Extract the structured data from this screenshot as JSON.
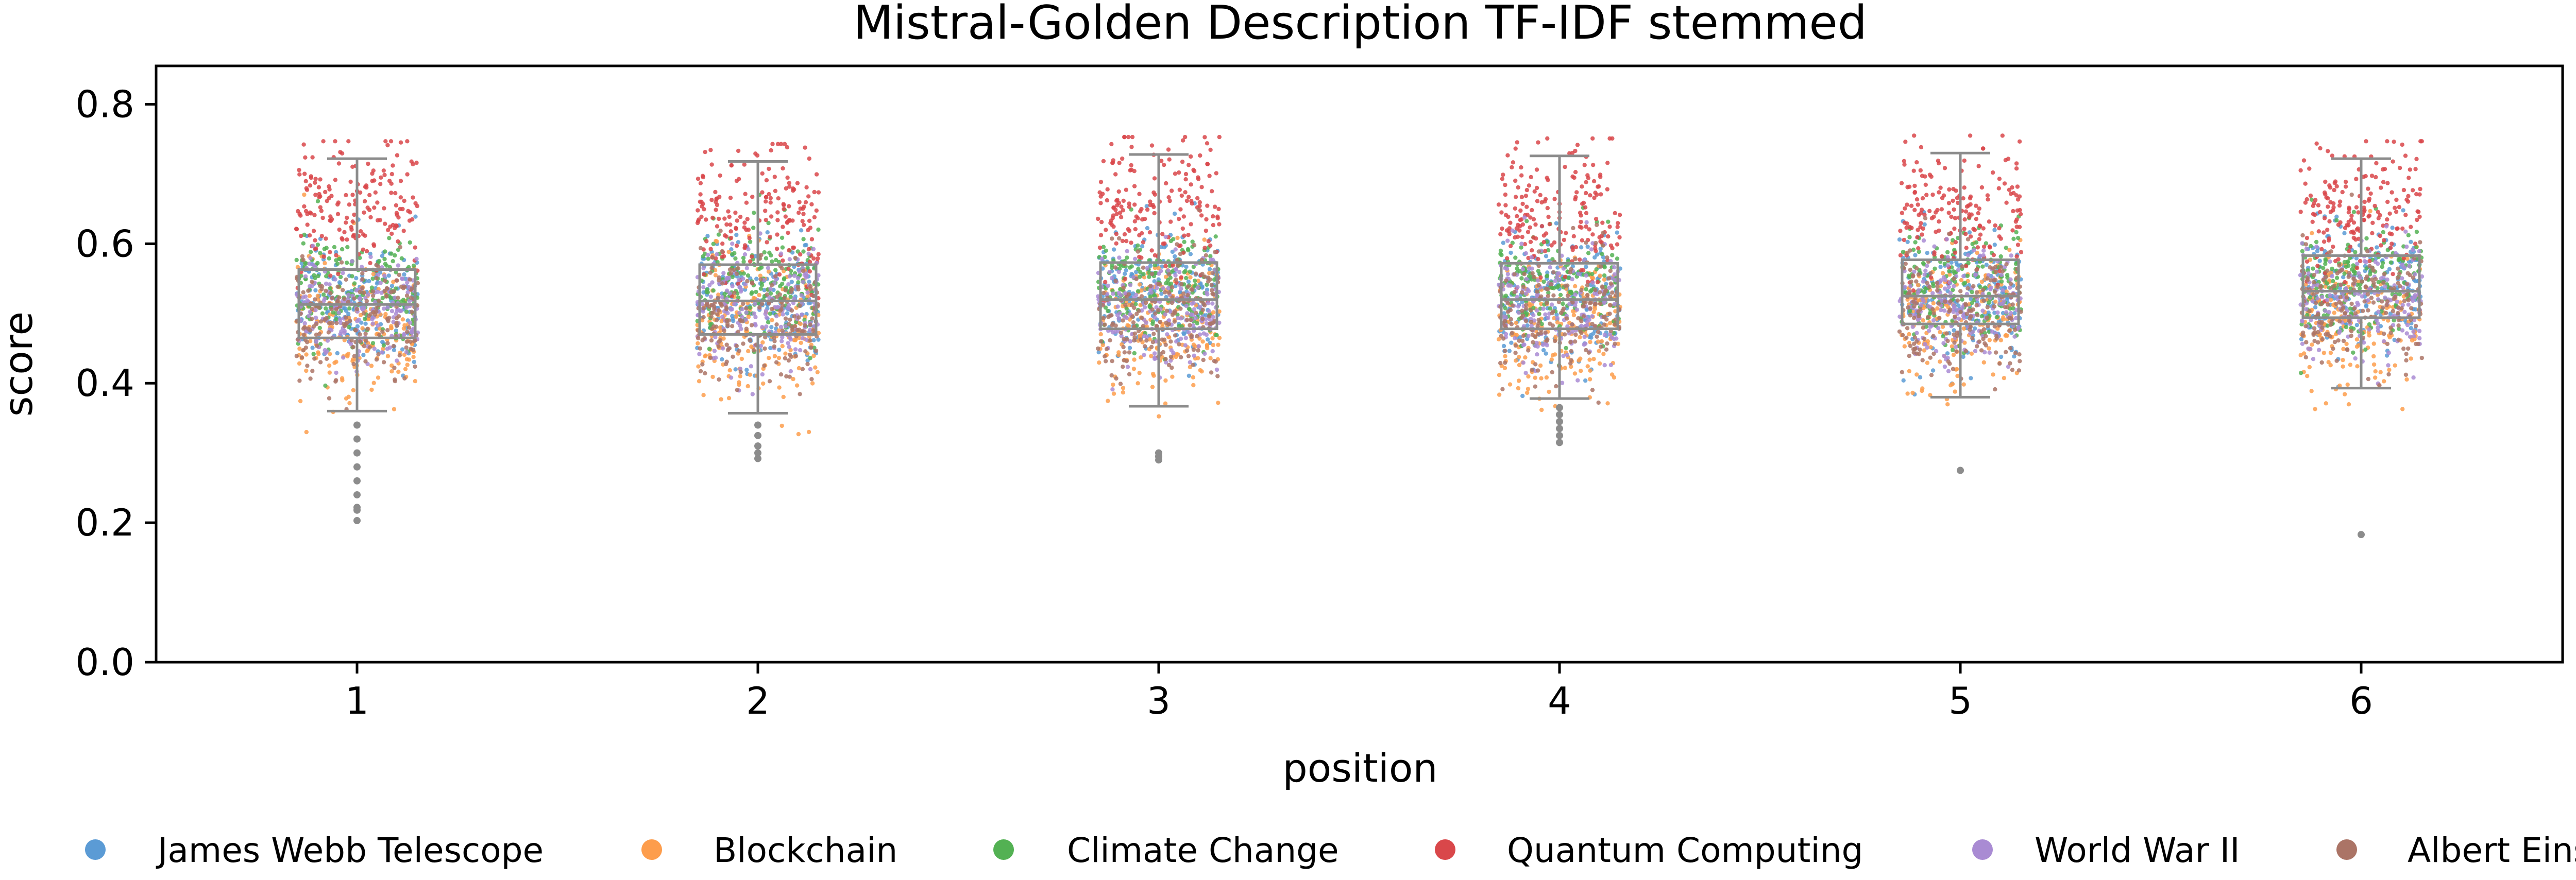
{
  "chart_data": {
    "type": "scatter",
    "title": "Mistral-Golden Description TF-IDF stemmed",
    "xlabel": "position",
    "ylabel": "score",
    "categories": [
      "1",
      "2",
      "3",
      "4",
      "5",
      "6"
    ],
    "ylim": [
      0,
      0.855
    ],
    "yticks": [
      "0.0",
      "0.2",
      "0.4",
      "0.6",
      "0.8"
    ],
    "grid": false,
    "legend_position": "bottom",
    "series": [
      {
        "name": "James Webb Telescope",
        "color": "#5b9bd5",
        "center": [
          0.52,
          0.52,
          0.53,
          0.52,
          0.52,
          0.53
        ],
        "spread": 0.045
      },
      {
        "name": "Blockchain",
        "color": "#fd9d4c",
        "center": [
          0.48,
          0.48,
          0.48,
          0.48,
          0.49,
          0.49
        ],
        "spread": 0.05
      },
      {
        "name": "Climate Change",
        "color": "#53b153",
        "center": [
          0.53,
          0.54,
          0.54,
          0.54,
          0.54,
          0.55
        ],
        "spread": 0.04
      },
      {
        "name": "Quantum Computing",
        "color": "#d9474a",
        "center": [
          0.65,
          0.65,
          0.65,
          0.65,
          0.65,
          0.65
        ],
        "spread": 0.05
      },
      {
        "name": "World War II",
        "color": "#a98bd3",
        "center": [
          0.5,
          0.51,
          0.51,
          0.51,
          0.51,
          0.52
        ],
        "spread": 0.04
      },
      {
        "name": "Albert Einstein",
        "color": "#ab7466",
        "center": [
          0.49,
          0.49,
          0.5,
          0.5,
          0.5,
          0.51
        ],
        "spread": 0.045
      }
    ],
    "boxplots": [
      {
        "position": "1",
        "q1": 0.465,
        "median": 0.513,
        "q3": 0.563,
        "whisker_low": 0.36,
        "whisker_high": 0.722,
        "outliers": [
          0.34,
          0.32,
          0.3,
          0.28,
          0.26,
          0.24,
          0.222,
          0.218,
          0.203
        ]
      },
      {
        "position": "2",
        "q1": 0.47,
        "median": 0.518,
        "q3": 0.57,
        "whisker_low": 0.357,
        "whisker_high": 0.718,
        "outliers": [
          0.34,
          0.325,
          0.31,
          0.3,
          0.292
        ]
      },
      {
        "position": "3",
        "q1": 0.478,
        "median": 0.52,
        "q3": 0.573,
        "whisker_low": 0.367,
        "whisker_high": 0.728,
        "outliers": [
          0.3,
          0.295,
          0.29
        ]
      },
      {
        "position": "4",
        "q1": 0.478,
        "median": 0.52,
        "q3": 0.572,
        "whisker_low": 0.378,
        "whisker_high": 0.726,
        "outliers": [
          0.365,
          0.355,
          0.345,
          0.335,
          0.325,
          0.315
        ]
      },
      {
        "position": "5",
        "q1": 0.485,
        "median": 0.525,
        "q3": 0.577,
        "whisker_low": 0.38,
        "whisker_high": 0.73,
        "outliers": [
          0.275
        ]
      },
      {
        "position": "6",
        "q1": 0.494,
        "median": 0.532,
        "q3": 0.583,
        "whisker_low": 0.393,
        "whisker_high": 0.722,
        "outliers": [
          0.183
        ]
      }
    ]
  }
}
